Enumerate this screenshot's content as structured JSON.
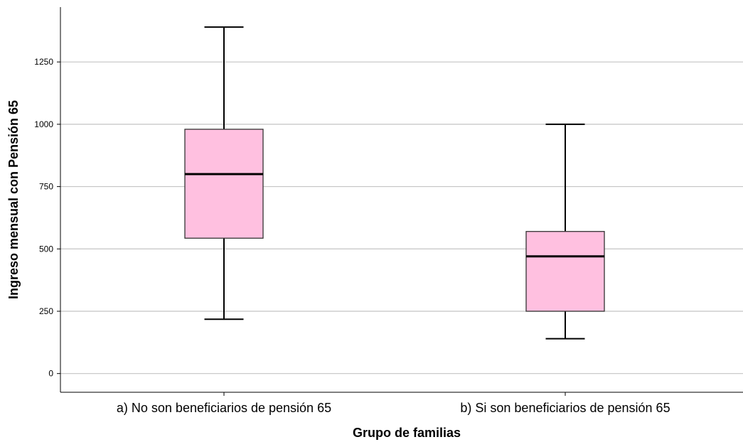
{
  "chart_data": {
    "type": "boxplot",
    "xlabel": "Grupo de familias",
    "ylabel": "Ingreso mensual con Pensión 65",
    "ylim": [
      -75,
      1470
    ],
    "yticks": [
      0,
      250,
      500,
      750,
      1000,
      1250
    ],
    "grid": true,
    "box_color": "#ffc0e0",
    "categories": [
      "a) No son beneficiarios de pensión 65",
      "b) Si son beneficiarios de pensión 65"
    ],
    "boxes": [
      {
        "category": "a) No son beneficiarios de pensión 65",
        "min": 218,
        "q1": 543,
        "median": 800,
        "q3": 980,
        "max": 1390
      },
      {
        "category": "b) Si son beneficiarios de pensión 65",
        "min": 140,
        "q1": 250,
        "median": 470,
        "q3": 570,
        "max": 1000
      }
    ]
  }
}
